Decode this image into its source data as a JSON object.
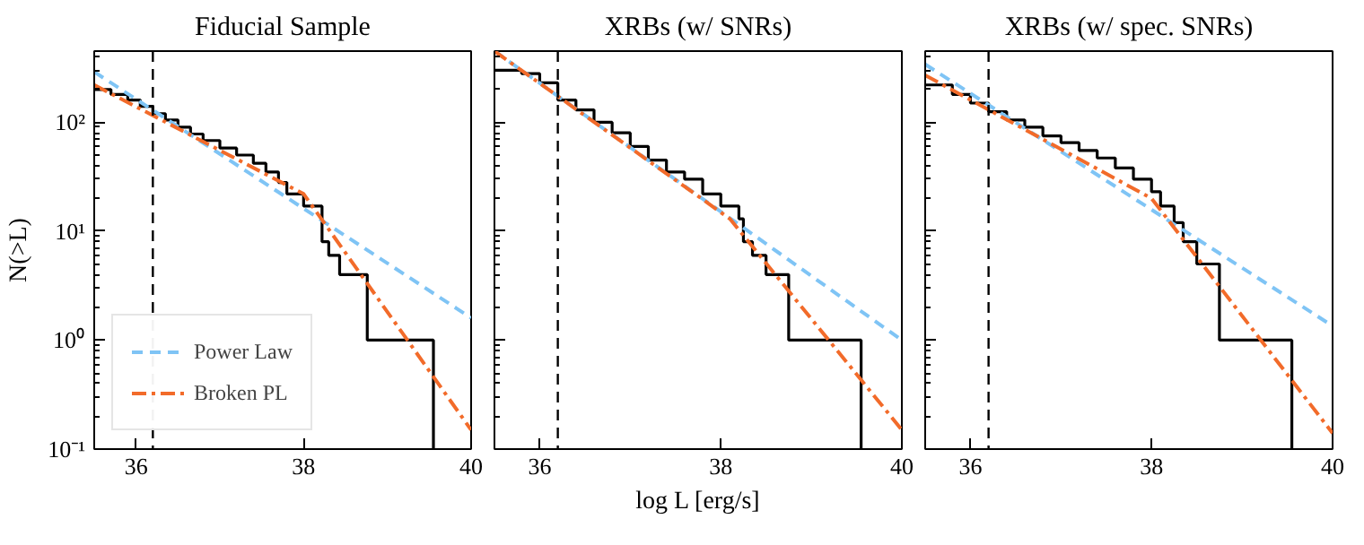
{
  "chart_data": [
    {
      "type": "step",
      "title": "Fiducial Sample",
      "ylabel": "N(>L)",
      "log": "y",
      "xlim": [
        35.5,
        40
      ],
      "ylim": [
        0.1,
        450
      ],
      "xticks": [
        36,
        38,
        40
      ],
      "yticks": [
        {
          "value": 0.1,
          "label": "10⁻¹"
        },
        {
          "value": 1,
          "label": "10⁰"
        },
        {
          "value": 10,
          "label": "10¹"
        },
        {
          "value": 100,
          "label": "10²"
        }
      ],
      "grid": false,
      "legend": "bottom left",
      "tick_labels": true,
      "ref_lines": [
        {
          "axis": "x",
          "value": 36.2,
          "color": "#000000",
          "line_style": "dashed"
        }
      ],
      "series": [
        {
          "color": "#000000",
          "x": [
            35.5,
            35.7,
            35.9,
            36.05,
            36.2,
            36.35,
            36.5,
            36.65,
            36.8,
            37.0,
            37.2,
            37.4,
            37.55,
            37.7,
            37.8,
            38.0,
            38.22,
            38.3,
            38.43,
            38.76,
            39.55
          ],
          "values": [
            200,
            180,
            160,
            140,
            120,
            105,
            90,
            78,
            68,
            58,
            50,
            42,
            35,
            28,
            22,
            17,
            8,
            6,
            4,
            1,
            0.1
          ]
        },
        {
          "type": "line",
          "name": "Power Law",
          "color": "#7fc4f5",
          "line_style": "dashed",
          "x": [
            35.5,
            40
          ],
          "values": [
            290,
            1.6
          ]
        },
        {
          "type": "line",
          "name": "Broken PL",
          "color": "#f26b2a",
          "line_style": "dashdot",
          "x": [
            35.5,
            38,
            40
          ],
          "values": [
            220,
            22,
            0.15
          ]
        }
      ]
    },
    {
      "type": "step",
      "title": "XRBs (w/ SNRs)",
      "xlabel": "log L [erg/s]",
      "log": "y",
      "xlim": [
        35.5,
        40
      ],
      "ylim": [
        0.1,
        450
      ],
      "xticks": [
        36,
        38,
        40
      ],
      "yticks": [
        {
          "value": 0.1,
          "label": null
        },
        {
          "value": 1,
          "label": null
        },
        {
          "value": 10,
          "label": null
        },
        {
          "value": 100,
          "label": null
        }
      ],
      "grid": false,
      "legend": false,
      "tick_labels": "x",
      "ref_lines": [
        {
          "axis": "x",
          "value": 36.2,
          "color": "#000000",
          "line_style": "dashed"
        }
      ],
      "series": [
        {
          "color": "#000000",
          "x": [
            35.5,
            35.8,
            36.0,
            36.2,
            36.4,
            36.6,
            36.8,
            37.0,
            37.2,
            37.4,
            37.6,
            37.8,
            38.0,
            38.2,
            38.25,
            38.35,
            38.5,
            38.75,
            39.55
          ],
          "values": [
            300,
            280,
            230,
            160,
            130,
            100,
            80,
            60,
            45,
            35,
            30,
            22,
            17,
            13,
            8,
            6,
            4,
            1,
            0.1
          ]
        },
        {
          "type": "line",
          "color": "#7fc4f5",
          "line_style": "dashed",
          "x": [
            35.5,
            40
          ],
          "values": [
            450,
            1.0
          ]
        },
        {
          "type": "line",
          "color": "#f26b2a",
          "line_style": "dashdot",
          "x": [
            35.5,
            38.1,
            40
          ],
          "values": [
            450,
            13,
            0.15
          ]
        }
      ]
    },
    {
      "type": "step",
      "title": "XRBs (w/ spec. SNRs)",
      "log": "y",
      "xlim": [
        35.5,
        40
      ],
      "ylim": [
        0.1,
        450
      ],
      "xticks": [
        36,
        38,
        40
      ],
      "yticks": [
        {
          "value": 0.1,
          "label": null
        },
        {
          "value": 1,
          "label": null
        },
        {
          "value": 10,
          "label": null
        },
        {
          "value": 100,
          "label": null
        }
      ],
      "grid": false,
      "legend": false,
      "tick_labels": "x",
      "ref_lines": [
        {
          "axis": "x",
          "value": 36.2,
          "color": "#000000",
          "line_style": "dashed"
        }
      ],
      "series": [
        {
          "color": "#000000",
          "x": [
            35.5,
            35.8,
            36.0,
            36.2,
            36.4,
            36.6,
            36.8,
            37.0,
            37.2,
            37.4,
            37.6,
            37.8,
            38.0,
            38.1,
            38.25,
            38.35,
            38.5,
            38.75,
            39.55
          ],
          "values": [
            220,
            180,
            150,
            125,
            105,
            90,
            75,
            65,
            55,
            47,
            38,
            30,
            23,
            17,
            12,
            8,
            5,
            1,
            0.1
          ]
        },
        {
          "type": "line",
          "color": "#7fc4f5",
          "line_style": "dashed",
          "x": [
            35.5,
            40
          ],
          "values": [
            340,
            1.35
          ]
        },
        {
          "type": "line",
          "color": "#f26b2a",
          "line_style": "dashdot",
          "x": [
            35.5,
            38,
            40
          ],
          "values": [
            270,
            20,
            0.14
          ]
        }
      ]
    }
  ]
}
